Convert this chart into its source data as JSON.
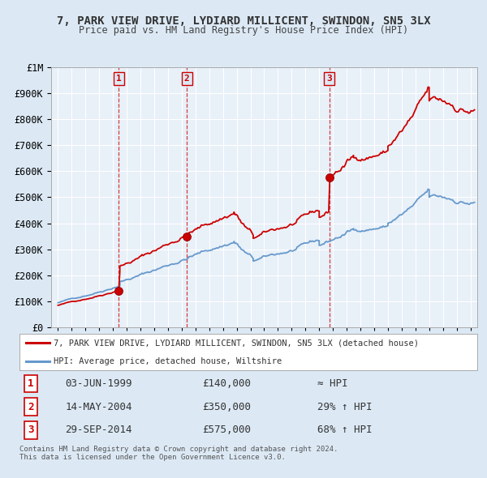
{
  "title": "7, PARK VIEW DRIVE, LYDIARD MILLICENT, SWINDON, SN5 3LX",
  "subtitle": "Price paid vs. HM Land Registry's House Price Index (HPI)",
  "background_color": "#dce9f5",
  "plot_bg_color": "#e8f0f8",
  "grid_color": "#ffffff",
  "sale_color": "#cc0000",
  "hpi_color": "#6699cc",
  "ylim": [
    0,
    1000000
  ],
  "yticks": [
    0,
    100000,
    200000,
    300000,
    400000,
    500000,
    600000,
    700000,
    800000,
    900000,
    1000000
  ],
  "ytick_labels": [
    "£0",
    "£100K",
    "£200K",
    "£300K",
    "£400K",
    "£500K",
    "£600K",
    "£700K",
    "£800K",
    "£900K",
    "£1M"
  ],
  "xlim_start": 1994.5,
  "xlim_end": 2025.5,
  "sale_dates": [
    1999.42,
    2004.37,
    2014.75
  ],
  "sale_prices": [
    140000,
    350000,
    575000
  ],
  "sale_labels": [
    "1",
    "2",
    "3"
  ],
  "vline_dates": [
    1999.42,
    2004.37,
    2014.75
  ],
  "legend_sale_label": "7, PARK VIEW DRIVE, LYDIARD MILLICENT, SWINDON, SN5 3LX (detached house)",
  "legend_hpi_label": "HPI: Average price, detached house, Wiltshire",
  "table_rows": [
    {
      "num": "1",
      "date": "03-JUN-1999",
      "price": "£140,000",
      "hpi": "≈ HPI"
    },
    {
      "num": "2",
      "date": "14-MAY-2004",
      "price": "£350,000",
      "hpi": "29% ↑ HPI"
    },
    {
      "num": "3",
      "date": "29-SEP-2014",
      "price": "£575,000",
      "hpi": "68% ↑ HPI"
    }
  ],
  "footer": "Contains HM Land Registry data © Crown copyright and database right 2024.\nThis data is licensed under the Open Government Licence v3.0."
}
